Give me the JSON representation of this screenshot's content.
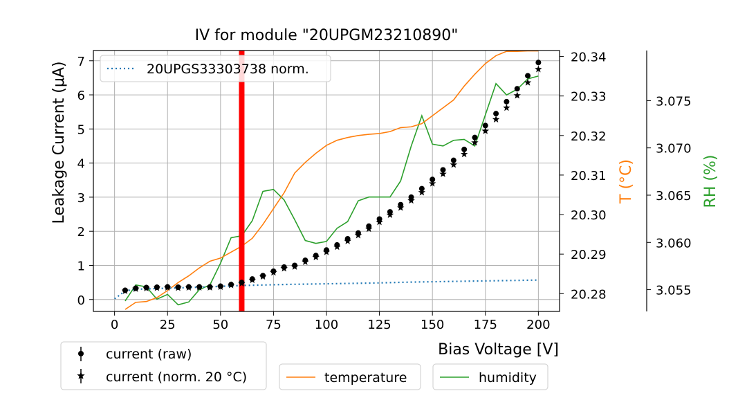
{
  "chart_data": {
    "type": "line",
    "title": "IV for module \"20UPGM23210890\"",
    "xlabel": "Bias Voltage [V]",
    "ylabel": "Leakage Current (μA)",
    "y2label": "T ($^\\circ$C)",
    "y2label_display": "T (°C)",
    "y3label": "RH (%)",
    "xlim": [
      -10,
      210
    ],
    "ylim": [
      -0.35,
      7.3
    ],
    "y2lim": [
      20.2755,
      20.3415
    ],
    "y3lim": [
      3.0527,
      3.0803
    ],
    "xticks": [
      0,
      25,
      50,
      75,
      100,
      125,
      150,
      175,
      200
    ],
    "yticks": [
      0,
      1,
      2,
      3,
      4,
      5,
      6,
      7
    ],
    "y2ticks": [
      20.28,
      20.29,
      20.3,
      20.31,
      20.32,
      20.33,
      20.34
    ],
    "y3ticks": [
      3.055,
      3.06,
      3.065,
      3.07,
      3.075
    ],
    "xtick_labels": [
      "0",
      "25",
      "50",
      "75",
      "100",
      "125",
      "150",
      "175",
      "200"
    ],
    "ytick_labels": [
      "0",
      "1",
      "2",
      "3",
      "4",
      "5",
      "6",
      "7"
    ],
    "y2tick_labels": [
      "20.28",
      "20.29",
      "20.30",
      "20.31",
      "20.32",
      "20.33",
      "20.34"
    ],
    "y3tick_labels": [
      "3.055",
      "3.060",
      "3.065",
      "3.070",
      "3.075"
    ],
    "grid": true,
    "vertical_marker": {
      "x": 60,
      "color": "#ff0000"
    },
    "colors": {
      "reference": "#1f77b4",
      "temperature": "#ff7f0e",
      "humidity": "#2ca02c",
      "markers": "#000000",
      "marker_line": "#ff0000"
    },
    "series": [
      {
        "name": "20UPGS33303738 norm.",
        "style": "dotted",
        "axis": "left",
        "x": [
          0,
          5,
          10,
          20,
          40,
          60,
          80,
          100,
          120,
          140,
          160,
          180,
          200
        ],
        "values": [
          0.02,
          0.25,
          0.3,
          0.32,
          0.36,
          0.41,
          0.44,
          0.46,
          0.48,
          0.51,
          0.53,
          0.55,
          0.57
        ]
      },
      {
        "name": "current (raw)",
        "style": "dot-marker",
        "axis": "left",
        "x": [
          5,
          10,
          15,
          20,
          25,
          30,
          35,
          40,
          45,
          50,
          55,
          60,
          65,
          70,
          75,
          80,
          85,
          90,
          95,
          100,
          105,
          110,
          115,
          120,
          125,
          130,
          135,
          140,
          145,
          150,
          155,
          160,
          165,
          170,
          175,
          180,
          185,
          190,
          195,
          200
        ],
        "values": [
          0.27,
          0.33,
          0.35,
          0.36,
          0.37,
          0.36,
          0.37,
          0.37,
          0.37,
          0.39,
          0.44,
          0.5,
          0.6,
          0.7,
          0.83,
          0.95,
          1.0,
          1.15,
          1.29,
          1.45,
          1.6,
          1.78,
          1.95,
          2.15,
          2.36,
          2.57,
          2.78,
          3.0,
          3.25,
          3.52,
          3.8,
          4.08,
          4.4,
          4.75,
          5.1,
          5.45,
          5.8,
          6.18,
          6.56,
          6.95
        ]
      },
      {
        "name": "current (norm. 20$^\\circ$C)",
        "display_name": "current (norm. 20 °C)",
        "style": "star-marker",
        "axis": "left",
        "x": [
          5,
          10,
          15,
          20,
          25,
          30,
          35,
          40,
          45,
          50,
          55,
          60,
          65,
          70,
          75,
          80,
          85,
          90,
          95,
          100,
          105,
          110,
          115,
          120,
          125,
          130,
          135,
          140,
          145,
          150,
          155,
          160,
          165,
          170,
          175,
          180,
          185,
          190,
          195,
          200
        ],
        "values": [
          0.25,
          0.31,
          0.33,
          0.34,
          0.35,
          0.34,
          0.35,
          0.35,
          0.35,
          0.37,
          0.42,
          0.47,
          0.57,
          0.67,
          0.79,
          0.91,
          0.96,
          1.1,
          1.24,
          1.39,
          1.54,
          1.71,
          1.88,
          2.07,
          2.27,
          2.48,
          2.69,
          2.9,
          3.14,
          3.4,
          3.68,
          3.95,
          4.26,
          4.6,
          4.94,
          5.28,
          5.62,
          5.98,
          6.36,
          6.75
        ]
      },
      {
        "name": "temperature",
        "style": "line",
        "axis": "right",
        "x": [
          5,
          10,
          15,
          20,
          25,
          30,
          35,
          40,
          45,
          50,
          55,
          60,
          65,
          70,
          75,
          80,
          85,
          90,
          95,
          100,
          105,
          110,
          115,
          120,
          125,
          130,
          135,
          140,
          145,
          150,
          155,
          160,
          165,
          170,
          175,
          180,
          185,
          190,
          195,
          200
        ],
        "values": [
          20.276,
          20.2778,
          20.278,
          20.279,
          20.2808,
          20.2828,
          20.2845,
          20.2865,
          20.2882,
          20.289,
          20.2905,
          20.292,
          20.294,
          20.2975,
          20.3015,
          20.3055,
          20.3105,
          20.3132,
          20.3155,
          20.3175,
          20.3188,
          20.3195,
          20.32,
          20.3203,
          20.3205,
          20.321,
          20.322,
          20.3222,
          20.323,
          20.325,
          20.327,
          20.329,
          20.3325,
          20.3355,
          20.3382,
          20.3402,
          20.3413,
          20.3413,
          20.3414,
          20.3414
        ]
      },
      {
        "name": "humidity",
        "style": "line",
        "axis": "right-outer",
        "x": [
          5,
          10,
          15,
          20,
          25,
          30,
          35,
          40,
          45,
          50,
          55,
          60,
          65,
          70,
          75,
          80,
          85,
          90,
          95,
          100,
          105,
          110,
          115,
          120,
          125,
          130,
          135,
          140,
          145,
          150,
          155,
          160,
          165,
          170,
          175,
          180,
          185,
          190,
          195,
          200
        ],
        "values": [
          3.0538,
          3.0555,
          3.0553,
          3.054,
          3.0545,
          3.0534,
          3.0537,
          3.055,
          3.0555,
          3.0578,
          3.0605,
          3.0607,
          3.0623,
          3.0654,
          3.0656,
          3.0645,
          3.0624,
          3.0602,
          3.0599,
          3.0601,
          3.0615,
          3.0622,
          3.0644,
          3.0648,
          3.0648,
          3.0648,
          3.0665,
          3.0702,
          3.0734,
          3.0704,
          3.0702,
          3.0708,
          3.0709,
          3.0702,
          3.0735,
          3.0768,
          3.0756,
          3.0762,
          3.0773,
          3.0776
        ]
      }
    ],
    "legends": {
      "top": {
        "items": [
          "20UPGS33303738 norm."
        ]
      },
      "bottom_left": {
        "items": [
          "current (raw)",
          "current (norm. 20 °C)"
        ]
      },
      "bottom_temp": {
        "items": [
          "temperature"
        ]
      },
      "bottom_hum": {
        "items": [
          "humidity"
        ]
      }
    }
  }
}
